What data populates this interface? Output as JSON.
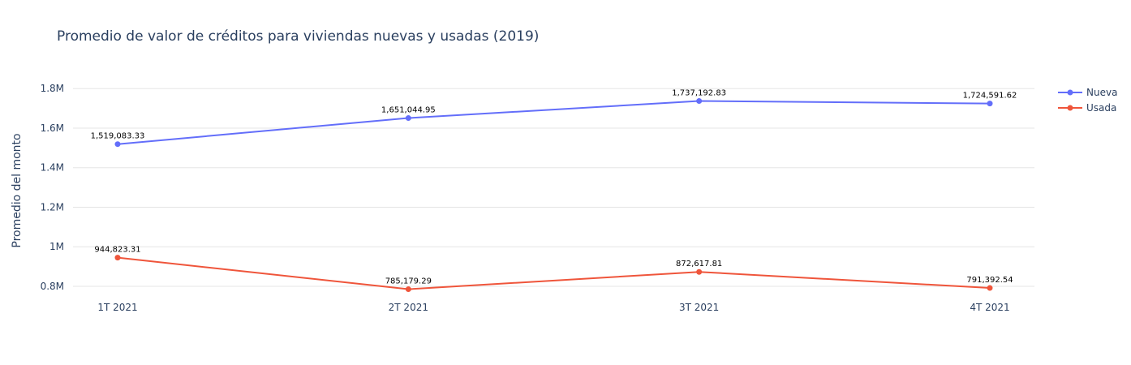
{
  "chart_data": {
    "type": "line",
    "title": "Promedio de valor de créditos para viviendas nuevas y usadas (2019)",
    "xlabel": "",
    "ylabel": "Promedio del monto",
    "categories": [
      "1T 2021",
      "2T 2021",
      "3T 2021",
      "4T 2021"
    ],
    "ylim": [
      730000,
      1920000
    ],
    "yticks": [
      800000,
      1000000,
      1200000,
      1400000,
      1600000,
      1800000
    ],
    "ytick_labels": [
      "0.8M",
      "1M",
      "1.2M",
      "1.4M",
      "1.6M",
      "1.8M"
    ],
    "grid": true,
    "legend_position": "top-right",
    "series": [
      {
        "name": "Nueva",
        "color": "#636efa",
        "values": [
          1519083.33,
          1651044.95,
          1737192.83,
          1724591.62
        ],
        "labels": [
          "1,519,083.33",
          "1,651,044.95",
          "1,737,192.83",
          "1,724,591.62"
        ]
      },
      {
        "name": "Usada",
        "color": "#ef553b",
        "values": [
          944823.31,
          785179.29,
          872617.81,
          791392.54
        ],
        "labels": [
          "944,823.31",
          "785,179.29",
          "872,617.81",
          "791,392.54"
        ]
      }
    ]
  }
}
